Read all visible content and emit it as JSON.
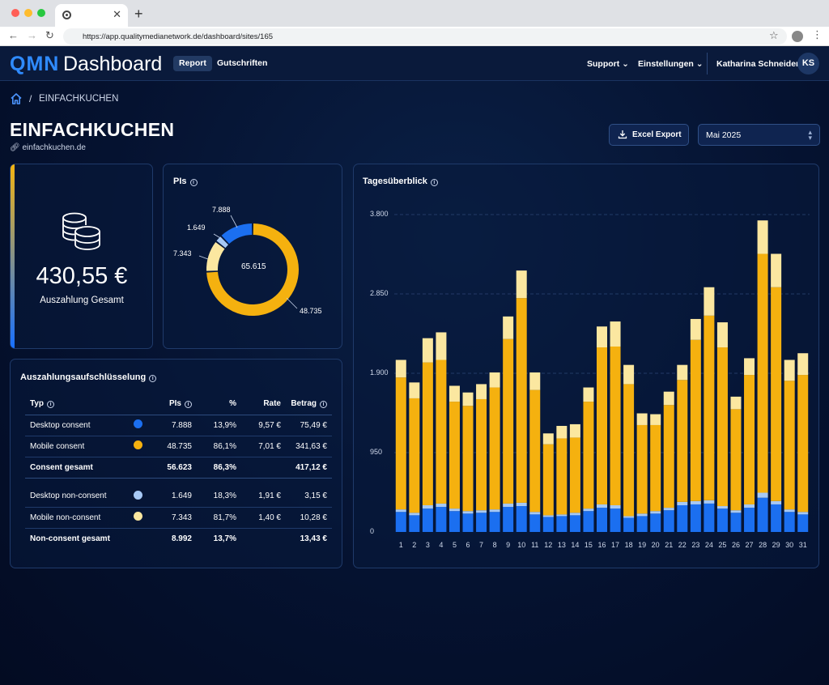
{
  "browser": {
    "url": "https://app.qualitymedianetwork.de/dashboard/sites/165",
    "new_tab": "+",
    "tab_close": "✕"
  },
  "header": {
    "logo_prefix": "QMN",
    "logo_suffix": "Dashboard",
    "nav": [
      "Report",
      "Gutschriften"
    ],
    "support": "Support",
    "settings": "Einstellungen",
    "user_name": "Katharina Schneider",
    "user_initials": "KS"
  },
  "breadcrumb": {
    "separator": "/",
    "current": "EINFACHKUCHEN"
  },
  "page": {
    "title": "EINFACHKUCHEN",
    "site": "einfachkuchen.de",
    "export_label": "Excel Export",
    "month": "Mai 2025"
  },
  "payout": {
    "value": "430,55 €",
    "label": "Auszahlung Gesamt"
  },
  "pis_card": {
    "title": "PIs",
    "center": "65.615",
    "segments": [
      {
        "label": "48.735",
        "value": 48735,
        "color": "#f5b10f"
      },
      {
        "label": "7.343",
        "value": 7343,
        "color": "#fbe7a0"
      },
      {
        "label": "1.649",
        "value": 1649,
        "color": "#a7c9f5"
      },
      {
        "label": "7.888",
        "value": 7888,
        "color": "#1b6ff0"
      }
    ]
  },
  "breakdown": {
    "title": "Auszahlungsaufschlüsselung",
    "headers": {
      "type": "Typ",
      "pis": "PIs",
      "pct": "%",
      "rate": "Rate",
      "amount": "Betrag"
    },
    "rows": [
      {
        "type": "Desktop consent",
        "color": "#1b6ff0",
        "pis": "7.888",
        "pct": "13,9%",
        "rate": "9,57 €",
        "amount": "75,49 €"
      },
      {
        "type": "Mobile consent",
        "color": "#f5b10f",
        "pis": "48.735",
        "pct": "86,1%",
        "rate": "7,01 €",
        "amount": "341,63 €"
      },
      {
        "type": "Consent gesamt",
        "pis": "56.623",
        "pct": "86,3%",
        "amount": "417,12 €"
      },
      {
        "type": "Desktop non-consent",
        "color": "#a7c9f5",
        "pis": "1.649",
        "pct": "18,3%",
        "rate": "1,91 €",
        "amount": "3,15 €"
      },
      {
        "type": "Mobile non-consent",
        "color": "#fbe7a0",
        "pis": "7.343",
        "pct": "81,7%",
        "rate": "1,40 €",
        "amount": "10,28 €"
      },
      {
        "type": "Non-consent gesamt",
        "pis": "8.992",
        "pct": "13,7%",
        "amount": "13,43 €"
      }
    ]
  },
  "chart_data": {
    "type": "bar",
    "title": "Tagesüberblick",
    "stacked": true,
    "ylim": [
      0,
      3800
    ],
    "yticks": [
      0,
      950,
      1900,
      2850,
      3800
    ],
    "ytick_labels": [
      "0",
      "950",
      "1.900",
      "2.850",
      "3.800"
    ],
    "categories": [
      "1",
      "2",
      "3",
      "4",
      "5",
      "6",
      "7",
      "8",
      "9",
      "10",
      "11",
      "12",
      "13",
      "14",
      "15",
      "16",
      "17",
      "18",
      "19",
      "20",
      "21",
      "22",
      "23",
      "24",
      "25",
      "26",
      "27",
      "28",
      "29",
      "30",
      "31"
    ],
    "series": [
      {
        "color": "#1b6ff0",
        "values": [
          240,
          200,
          280,
          300,
          250,
          220,
          230,
          240,
          300,
          310,
          210,
          180,
          190,
          200,
          250,
          290,
          280,
          170,
          190,
          220,
          260,
          320,
          330,
          340,
          280,
          230,
          290,
          410,
          330,
          240,
          210
        ]
      },
      {
        "color": "#a7c9f5",
        "values": [
          30,
          30,
          40,
          40,
          30,
          30,
          30,
          30,
          40,
          40,
          30,
          20,
          20,
          30,
          30,
          40,
          40,
          20,
          30,
          30,
          30,
          40,
          40,
          40,
          30,
          30,
          40,
          60,
          40,
          30,
          30
        ]
      },
      {
        "color": "#f5b10f",
        "values": [
          1580,
          1370,
          1710,
          1720,
          1280,
          1260,
          1330,
          1460,
          1970,
          2450,
          1460,
          850,
          910,
          900,
          1280,
          1880,
          1900,
          1580,
          1060,
          1030,
          1230,
          1460,
          1930,
          2210,
          1900,
          1210,
          1550,
          2860,
          2560,
          1540,
          1640
        ]
      },
      {
        "color": "#fbe7a0",
        "values": [
          210,
          190,
          290,
          330,
          190,
          160,
          180,
          180,
          270,
          330,
          210,
          130,
          150,
          160,
          170,
          250,
          300,
          230,
          140,
          130,
          160,
          180,
          250,
          340,
          300,
          150,
          200,
          400,
          400,
          250,
          260
        ]
      }
    ]
  }
}
